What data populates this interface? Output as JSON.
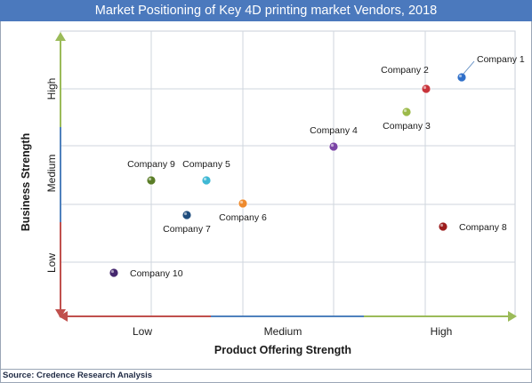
{
  "chart_data": {
    "type": "scatter",
    "title": "Market Positioning  of Key 4D printing market Vendors, 2018",
    "xlabel": "Product Offering Strength",
    "ylabel": "Business Strength",
    "x_ticks": [
      "Low",
      "Medium",
      "High"
    ],
    "y_ticks": [
      "Low",
      "Medium",
      "High"
    ],
    "grid": true,
    "points": [
      {
        "label": "Company 1",
        "x": 3.0,
        "y": 3.0,
        "color": "#2f6fc9"
      },
      {
        "label": "Company 2",
        "x": 2.66,
        "y": 2.81,
        "color": "#c8343b"
      },
      {
        "label": "Company 3",
        "x": 2.51,
        "y": 2.57,
        "color": "#9cba4a"
      },
      {
        "label": "Company 4",
        "x": 1.94,
        "y": 2.07,
        "color": "#7b45a6"
      },
      {
        "label": "Company 5",
        "x": 1.38,
        "y": 1.77,
        "color": "#3fb8d4"
      },
      {
        "label": "Company 6",
        "x": 1.59,
        "y": 1.38,
        "color": "#ee8a2e"
      },
      {
        "label": "Company 7",
        "x": 1.29,
        "y": 1.27,
        "color": "#1f4d7d"
      },
      {
        "label": "Company 8",
        "x": 2.8,
        "y": 1.06,
        "color": "#9c1d1d"
      },
      {
        "label": "Company 9",
        "x": 1.0,
        "y": 1.78,
        "color": "#5a7d27"
      },
      {
        "label": "Company 10",
        "x": 0.33,
        "y": 0.2,
        "color": "#45276e"
      }
    ]
  },
  "source": "Source: Credence Research Analysis"
}
